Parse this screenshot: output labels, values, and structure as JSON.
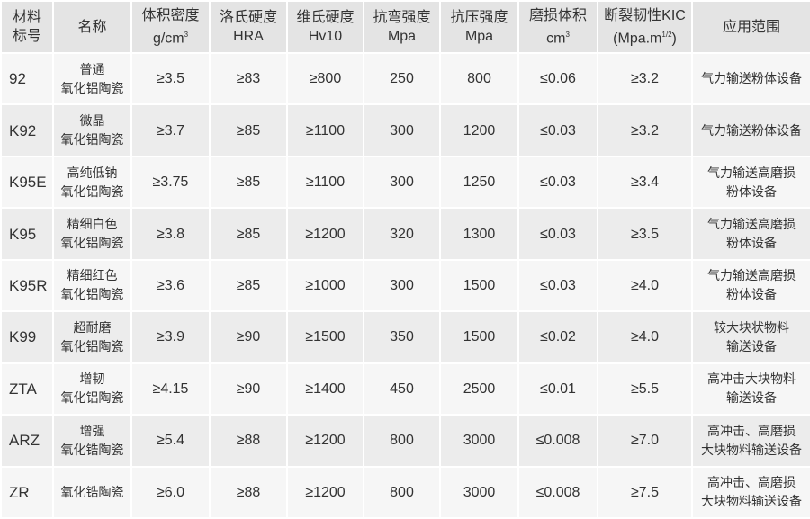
{
  "headers": [
    {
      "l1": "材料",
      "l2": "标号"
    },
    {
      "l1": "名称",
      "l2": ""
    },
    {
      "l1": "体积密度",
      "l2": "g/cm",
      "sup": "3"
    },
    {
      "l1": "洛氏硬度",
      "l2": "HRA"
    },
    {
      "l1": "维氏硬度",
      "l2": "Hv10"
    },
    {
      "l1": "抗弯强度",
      "l2": "Mpa"
    },
    {
      "l1": "抗压强度",
      "l2": "Mpa"
    },
    {
      "l1": "磨损体积",
      "l2": "cm",
      "sup": "3"
    },
    {
      "l1": "断裂韧性KIC",
      "l2": "(Mpa.m",
      "sup": "1/2",
      "l2b": ")"
    },
    {
      "l1": "应用范围",
      "l2": ""
    }
  ],
  "rows": [
    {
      "code": "92",
      "name1": "普通",
      "name2": "氧化铝陶瓷",
      "density": "≥3.5",
      "hra": "≥83",
      "hv": "≥800",
      "bend": "250",
      "comp": "800",
      "wear": "≤0.06",
      "kic": "≥3.2",
      "app1": "气力输送粉体设备",
      "app2": ""
    },
    {
      "code": "K92",
      "name1": "微晶",
      "name2": "氧化铝陶瓷",
      "density": "≥3.7",
      "hra": "≥85",
      "hv": "≥1100",
      "bend": "300",
      "comp": "1200",
      "wear": "≤0.03",
      "kic": "≥3.2",
      "app1": "气力输送粉体设备",
      "app2": ""
    },
    {
      "code": "K95E",
      "name1": "高纯低钠",
      "name2": "氧化铝陶瓷",
      "density": "≥3.75",
      "hra": "≥85",
      "hv": "≥1100",
      "bend": "300",
      "comp": "1250",
      "wear": "≤0.03",
      "kic": "≥3.4",
      "app1": "气力输送高磨损",
      "app2": "粉体设备"
    },
    {
      "code": "K95",
      "name1": "精细白色",
      "name2": "氧化铝陶瓷",
      "density": "≥3.8",
      "hra": "≥85",
      "hv": "≥1200",
      "bend": "320",
      "comp": "1300",
      "wear": "≤0.03",
      "kic": "≥3.5",
      "app1": "气力输送高磨损",
      "app2": "粉体设备"
    },
    {
      "code": "K95R",
      "name1": "精细红色",
      "name2": "氧化铝陶瓷",
      "density": "≥3.6",
      "hra": "≥85",
      "hv": "≥1000",
      "bend": "300",
      "comp": "1500",
      "wear": "≤0.03",
      "kic": "≥4.0",
      "app1": "气力输送高磨损",
      "app2": "粉体设备"
    },
    {
      "code": "K99",
      "name1": "超耐磨",
      "name2": "氧化铝陶瓷",
      "density": "≥3.9",
      "hra": "≥90",
      "hv": "≥1500",
      "bend": "350",
      "comp": "1500",
      "wear": "≤0.02",
      "kic": "≥4.0",
      "app1": "较大块状物料",
      "app2": "输送设备"
    },
    {
      "code": "ZTA",
      "name1": "增韧",
      "name2": "氧化铝陶瓷",
      "density": "≥4.15",
      "hra": "≥90",
      "hv": "≥1400",
      "bend": "450",
      "comp": "2500",
      "wear": "≤0.01",
      "kic": "≥5.5",
      "app1": "高冲击大块物料",
      "app2": "输送设备"
    },
    {
      "code": "ARZ",
      "name1": "增强",
      "name2": "氧化锆陶瓷",
      "density": "≥5.4",
      "hra": "≥88",
      "hv": "≥1200",
      "bend": "800",
      "comp": "3000",
      "wear": "≤0.008",
      "kic": "≥7.0",
      "app1": "高冲击、高磨损",
      "app2": "大块物料输送设备"
    },
    {
      "code": "ZR",
      "name1": "氧化锆陶瓷",
      "name2": "",
      "density": "≥6.0",
      "hra": "≥88",
      "hv": "≥1200",
      "bend": "800",
      "comp": "3000",
      "wear": "≤0.008",
      "kic": "≥7.5",
      "app1": "高冲击、高磨损",
      "app2": "大块物料输送设备"
    }
  ]
}
